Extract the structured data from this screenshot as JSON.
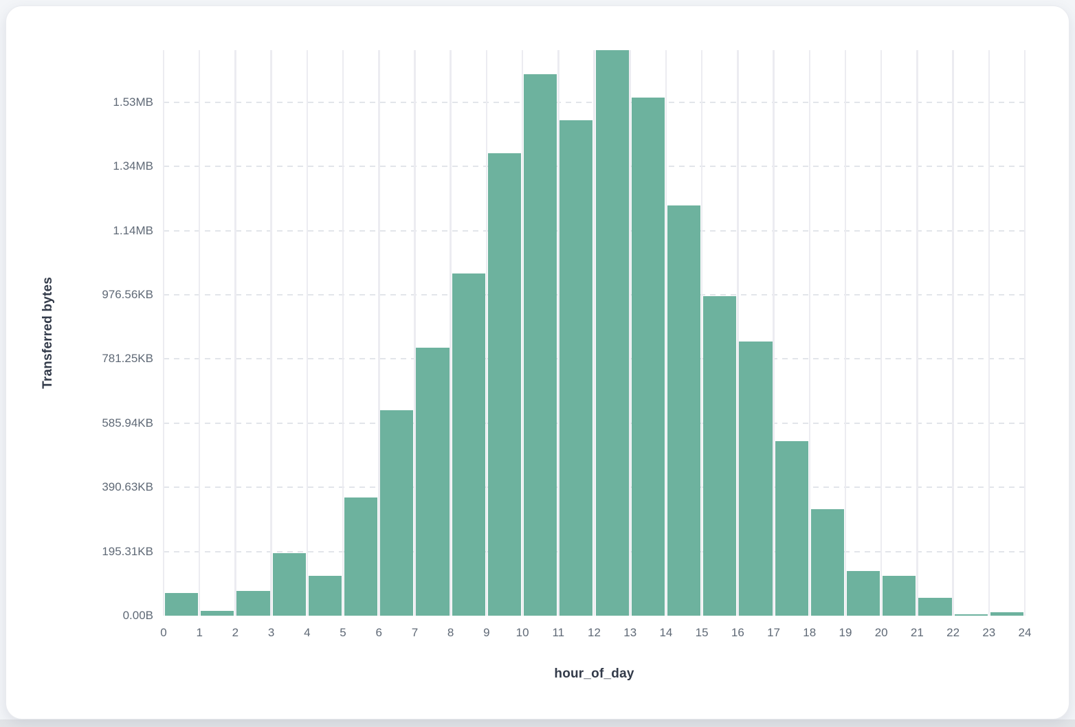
{
  "page": {
    "background_color": "#f3f5f8",
    "card_background_color": "#ffffff",
    "bottom_strip_color": "#e2e4e7"
  },
  "chart_data": {
    "type": "bar",
    "title": "",
    "xlabel": "hour_of_day",
    "ylabel": "Transferred bytes",
    "unit": "bytes",
    "bar_color": "#6db29e",
    "grid": true,
    "legend": false,
    "categories": [
      0,
      1,
      2,
      3,
      4,
      5,
      6,
      7,
      8,
      9,
      10,
      11,
      12,
      13,
      14,
      15,
      16,
      17,
      18,
      19,
      20,
      21,
      22,
      23
    ],
    "values": [
      71500,
      14300,
      77300,
      195000,
      125000,
      368000,
      641000,
      836000,
      1067000,
      1441000,
      1688000,
      1544000,
      1762500,
      1615000,
      1279000,
      996000,
      855000,
      545000,
      333000,
      140000,
      125000,
      56500,
      5100,
      11600
    ],
    "x_tick_labels": [
      "0",
      "1",
      "2",
      "3",
      "4",
      "5",
      "6",
      "7",
      "8",
      "9",
      "10",
      "11",
      "12",
      "13",
      "14",
      "15",
      "16",
      "17",
      "18",
      "19",
      "20",
      "21",
      "22",
      "23",
      "24"
    ],
    "y_ticks": [
      {
        "label": "0.00B",
        "bytes": 0
      },
      {
        "label": "195.31KB",
        "bytes": 200000
      },
      {
        "label": "390.63KB",
        "bytes": 400000
      },
      {
        "label": "585.94KB",
        "bytes": 600000
      },
      {
        "label": "781.25KB",
        "bytes": 800000
      },
      {
        "label": "976.56KB",
        "bytes": 1000000
      },
      {
        "label": "1.14MB",
        "bytes": 1200000
      },
      {
        "label": "1.34MB",
        "bytes": 1400000
      },
      {
        "label": "1.53MB",
        "bytes": 1600000
      }
    ],
    "ylim": [
      0,
      1762500
    ],
    "xlim": [
      0,
      24
    ]
  }
}
